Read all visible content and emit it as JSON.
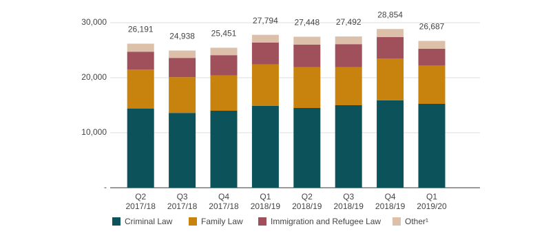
{
  "chart_data": {
    "type": "stacked_bar",
    "categories": [
      [
        "Q2",
        "2017/18"
      ],
      [
        "Q3",
        "2017/18"
      ],
      [
        "Q4",
        "2017/18"
      ],
      [
        "Q1",
        "2018/19"
      ],
      [
        "Q2",
        "2018/19"
      ],
      [
        "Q3",
        "2018/19"
      ],
      [
        "Q4",
        "2018/19"
      ],
      [
        "Q1",
        "2019/20"
      ]
    ],
    "series": [
      {
        "name": "Criminal Law",
        "color": "#0b525b",
        "values": [
          14375,
          13600,
          14000,
          14900,
          14500,
          15000,
          15900,
          15250
        ]
      },
      {
        "name": "Family Law",
        "color": "#c8820e",
        "values": [
          7100,
          6500,
          6400,
          7500,
          7400,
          6900,
          7600,
          7000
        ]
      },
      {
        "name": "Immigration and Refugee Law",
        "color": "#a0505a",
        "values": [
          3250,
          3500,
          3700,
          4000,
          4100,
          4200,
          3900,
          3000
        ]
      },
      {
        "name": "Other¹",
        "color": "#dcc0aa",
        "values": [
          1466,
          1338,
          1351,
          1394,
          1448,
          1392,
          1454,
          1437
        ]
      }
    ],
    "totals": [
      26191,
      24938,
      25451,
      27794,
      27448,
      27492,
      28854,
      26687
    ],
    "total_labels": [
      "26,191",
      "24,938",
      "25,451",
      "27,794",
      "27,448",
      "27,492",
      "28,854",
      "26,687"
    ],
    "ylim": [
      0,
      30000
    ],
    "yticks": [
      {
        "value": 0,
        "label": "-"
      },
      {
        "value": 10000,
        "label": "10,000"
      },
      {
        "value": 20000,
        "label": "20,000"
      },
      {
        "value": 30000,
        "label": "30,000"
      }
    ],
    "grid": true
  }
}
